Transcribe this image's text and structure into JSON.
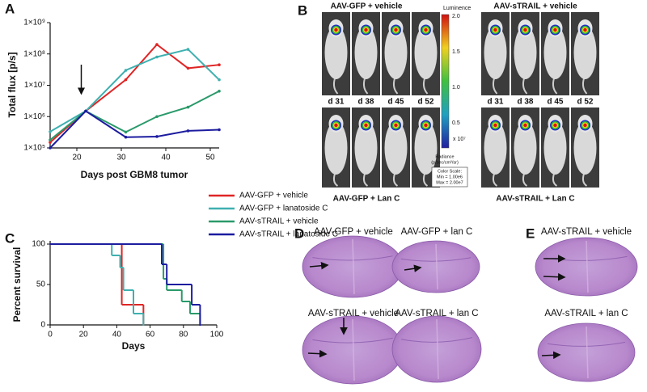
{
  "panel_labels": [
    "A",
    "B",
    "C",
    "D",
    "E"
  ],
  "chart_data": [
    {
      "type": "line",
      "ylabel": "Total flux [p/s]",
      "xlabel": "Days post GBM8 tumor",
      "log_y": true,
      "xlim": [
        14,
        52
      ],
      "xticks": [
        20,
        30,
        40,
        50
      ],
      "ylim": [
        100000,
        1000000000
      ],
      "yticks": [
        {
          "value": 100000,
          "label": "1×10⁵"
        },
        {
          "value": 1000000,
          "label": "1×10⁶"
        },
        {
          "value": 10000000,
          "label": "1×10⁷"
        },
        {
          "value": 100000000,
          "label": "1×10⁸"
        },
        {
          "value": 1000000000,
          "label": "1×10⁹"
        }
      ],
      "series": [
        {
          "name": "AAV-GFP + vehicle",
          "color": "#e02424",
          "x": [
            14,
            22,
            31,
            38,
            45,
            52
          ],
          "values": [
            150000,
            1500000,
            15000000,
            200000000,
            35000000,
            45000000
          ]
        },
        {
          "name": "AAV-GFP + lanatoside C",
          "color": "#3fb0b0",
          "x": [
            14,
            22,
            31,
            38,
            45,
            52
          ],
          "values": [
            330000,
            1500000,
            30000000,
            80000000,
            140000000,
            15000000
          ]
        },
        {
          "name": "AAV-sTRAIL + vehicle",
          "color": "#2a9a6a",
          "x": [
            14,
            22,
            31,
            38,
            45,
            52
          ],
          "values": [
            180000,
            1500000,
            320000,
            1000000,
            2000000,
            6500000
          ]
        },
        {
          "name": "AAV-sTRAIL + lanatoside C",
          "color": "#1c1ca0",
          "x": [
            14,
            22,
            31,
            38,
            45,
            52
          ],
          "values": [
            100000,
            1500000,
            220000,
            230000,
            350000,
            380000
          ]
        }
      ]
    },
    {
      "type": "step",
      "ylabel": "Percent survival",
      "xlabel": "Days",
      "xlim": [
        0,
        100
      ],
      "xticks": [
        0,
        20,
        40,
        60,
        80,
        100
      ],
      "ylim": [
        0,
        100
      ],
      "yticks": [
        0,
        50,
        100
      ],
      "series": [
        {
          "color": "#e02424",
          "x": [
            0,
            43,
            56
          ],
          "values": [
            100,
            25,
            0
          ]
        },
        {
          "color": "#3fb0b0",
          "x": [
            0,
            37,
            42,
            44,
            50,
            56
          ],
          "values": [
            100,
            86,
            71,
            43,
            14,
            0
          ]
        },
        {
          "color": "#2a9a6a",
          "x": [
            0,
            68,
            70,
            79,
            84,
            90
          ],
          "values": [
            100,
            57,
            43,
            29,
            14,
            0
          ]
        },
        {
          "color": "#1c1ca0",
          "x": [
            0,
            67,
            70,
            85,
            90
          ],
          "values": [
            100,
            75,
            50,
            25,
            0
          ]
        }
      ]
    }
  ],
  "panel_b": {
    "groups": [
      "AAV-GFP + vehicle",
      "AAV-sTRAIL + vehicle",
      "AAV-GFP + Lan C",
      "AAV-sTRAIL + Lan C"
    ],
    "days": [
      "d 31",
      "d 38",
      "d 45",
      "d 52"
    ],
    "colorbar": {
      "title": "Luminence",
      "tick_labels": [
        "2.0",
        "1.5",
        "1.0",
        "0.5"
      ],
      "exponent": "x 10⁷",
      "unit_lines": [
        "Radiance",
        "(p/sec/cm²/sr)"
      ],
      "scale_lines": [
        "Color Scale:",
        "Min = 1.00e6",
        "Max = 2.00e7"
      ]
    }
  },
  "panel_d": {
    "captions": [
      "AAV-GFP + vehicle",
      "AAV-GFP + lan C",
      "AAV-sTRAIL + vehicle",
      "AAV-sTRAIL + lan C"
    ]
  },
  "panel_e": {
    "captions": [
      "AAV-sTRAIL + vehicle",
      "AAV-sTRAIL + lan C"
    ]
  }
}
